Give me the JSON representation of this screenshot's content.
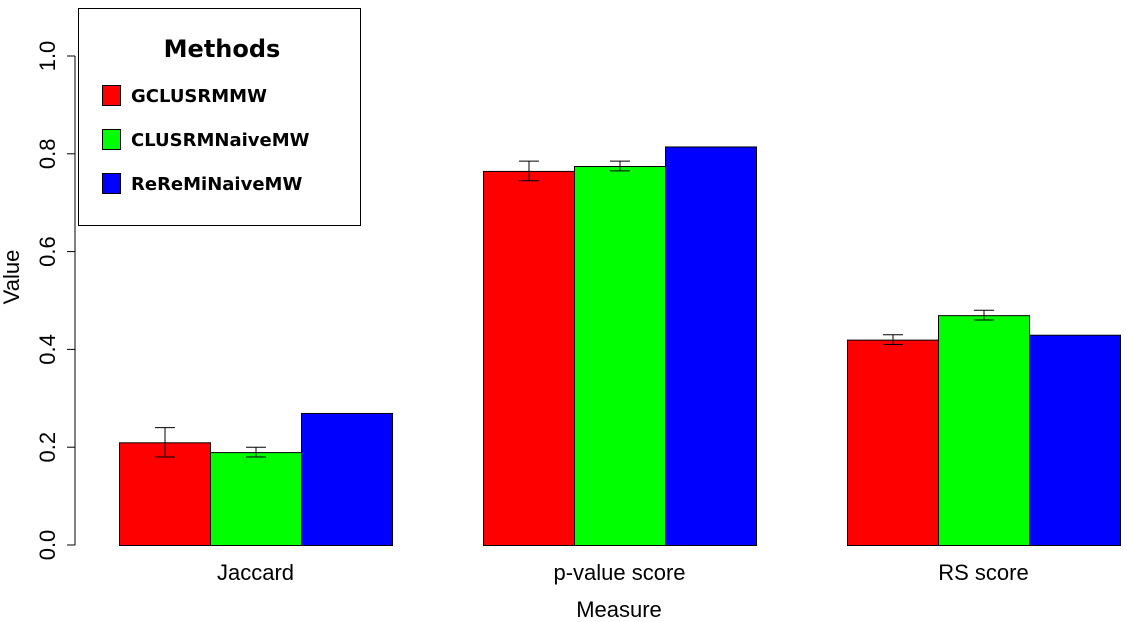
{
  "chart_data": {
    "type": "bar",
    "categories": [
      "Jaccard",
      "p-value score",
      "RS score"
    ],
    "series": [
      {
        "name": "GCLUSRMMW",
        "color": "#ff0000",
        "values": [
          0.21,
          0.765,
          0.42
        ],
        "error_low": [
          0.18,
          0.745,
          0.41
        ],
        "error_high": [
          0.24,
          0.785,
          0.43
        ]
      },
      {
        "name": "CLUSRMNaiveMW",
        "color": "#00ff00",
        "values": [
          0.19,
          0.775,
          0.47
        ],
        "error_low": [
          0.18,
          0.765,
          0.46
        ],
        "error_high": [
          0.2,
          0.785,
          0.48
        ]
      },
      {
        "name": "ReReMiNaiveMW",
        "color": "#0000ff",
        "values": [
          0.27,
          0.815,
          0.43
        ]
      }
    ],
    "xlabel": "Measure",
    "ylabel": "Value",
    "ylim": [
      0,
      1.0
    ],
    "yticks": [
      "0.0",
      "0.2",
      "0.4",
      "0.6",
      "0.8",
      "1.0"
    ],
    "grid": false,
    "legend_title": "Methods",
    "legend_position": "top-left"
  }
}
